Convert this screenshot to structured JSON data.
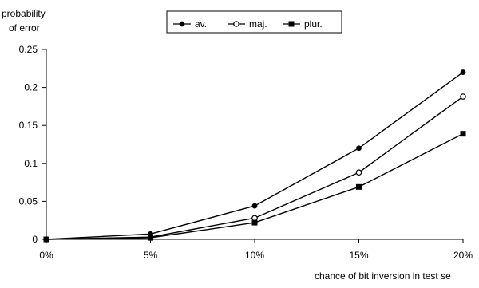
{
  "chart_data": {
    "type": "line",
    "ylabel": [
      "probability",
      "of error"
    ],
    "xlabel": "chance of bit inversion in test se",
    "categories": [
      "0%",
      "5%",
      "10%",
      "15%",
      "20%"
    ],
    "y_ticks": [
      "0",
      "0.05",
      "0.1",
      "0.15",
      "0.2",
      "0.25"
    ],
    "ylim": [
      0,
      0.25
    ],
    "grid": false,
    "legend_position": "top-center",
    "series": [
      {
        "name": "av.",
        "marker": "filled-circle",
        "values": [
          0,
          0.007,
          0.044,
          0.12,
          0.22
        ]
      },
      {
        "name": "maj.",
        "marker": "open-circle",
        "values": [
          0,
          0.003,
          0.028,
          0.088,
          0.188
        ]
      },
      {
        "name": "plur.",
        "marker": "filled-square",
        "values": [
          0,
          0.002,
          0.022,
          0.069,
          0.139
        ]
      }
    ]
  }
}
